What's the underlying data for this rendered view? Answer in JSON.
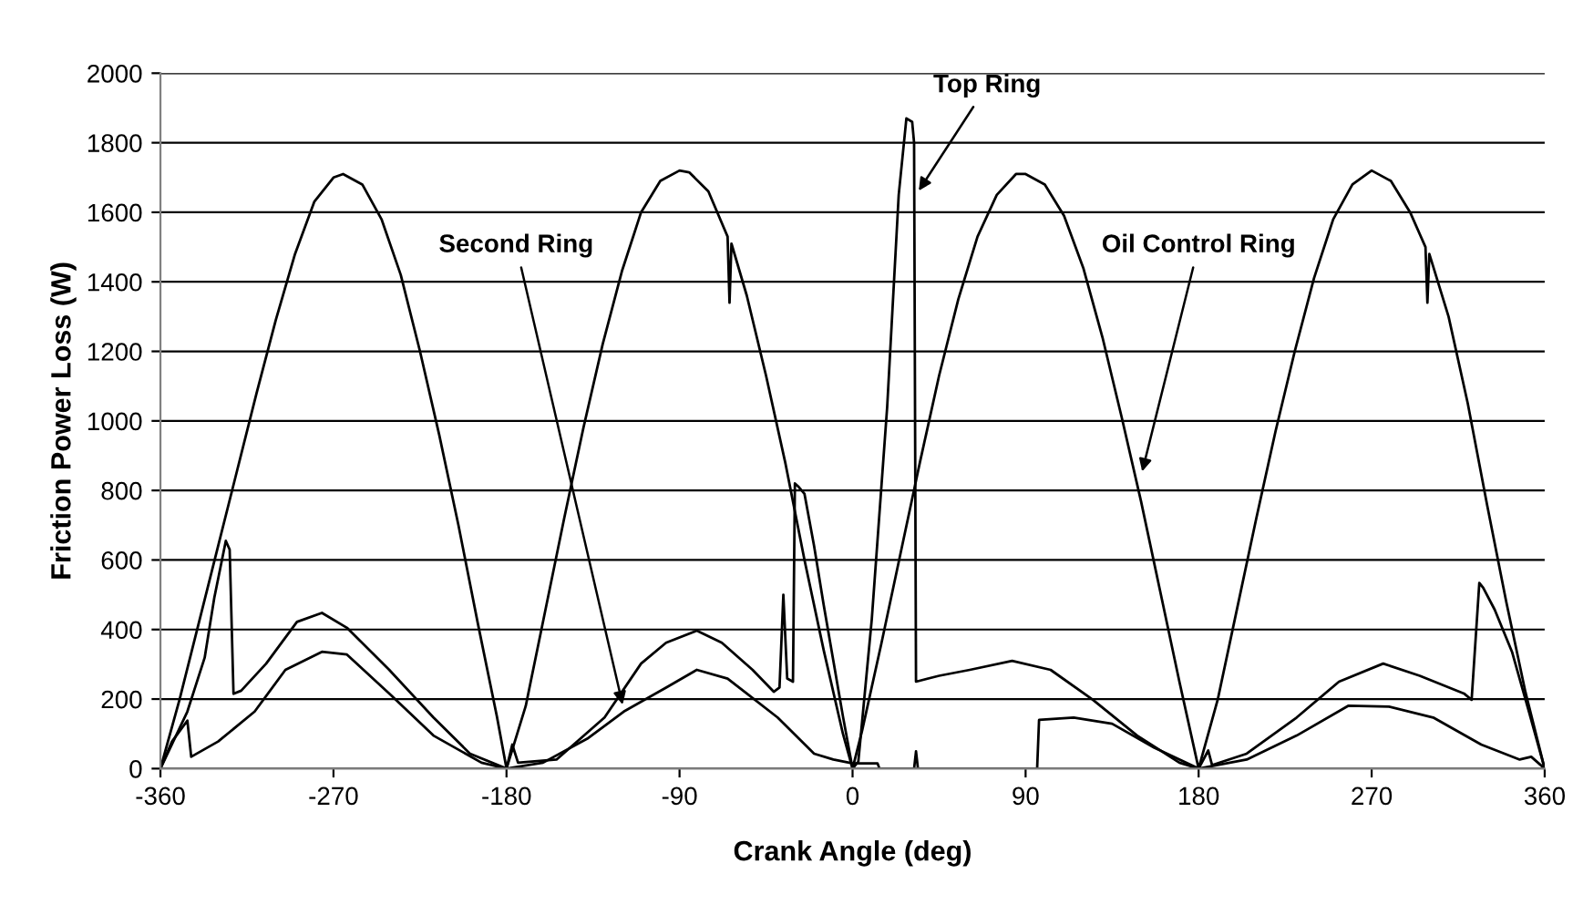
{
  "chart_data": {
    "type": "line",
    "xlabel": "Crank Angle (deg)",
    "ylabel": "Friction Power Loss (W)",
    "xlim": [
      -360,
      360
    ],
    "xticks": [
      -360,
      -270,
      -180,
      -90,
      0,
      90,
      180,
      270,
      360
    ],
    "ylim": [
      0,
      2000
    ],
    "yticks": [
      0,
      200,
      400,
      600,
      800,
      1000,
      1200,
      1400,
      1600,
      1800,
      2000
    ],
    "grid": "y",
    "marker": "none",
    "line_style": "solid",
    "series": [
      {
        "color": "#000000",
        "x": [
          -360,
          -350,
          -340,
          -330,
          -320,
          -310,
          -300,
          -290,
          -280,
          -270,
          -265,
          -255,
          -245,
          -235,
          -225,
          -215,
          -205,
          -195,
          -185,
          -180,
          -170,
          -160,
          -150,
          -140,
          -130,
          -120,
          -110,
          -100,
          -90,
          -85,
          -75,
          -65,
          -64,
          -63,
          -55,
          -45,
          -35,
          -25,
          -15,
          -5,
          0,
          5,
          15,
          25,
          35,
          45,
          55,
          65,
          75,
          85,
          90,
          100,
          110,
          120,
          130,
          140,
          150,
          160,
          170,
          180,
          190,
          200,
          210,
          220,
          230,
          240,
          250,
          260,
          270,
          280,
          290,
          298,
          299,
          300,
          310,
          320,
          330,
          340,
          350,
          360
        ],
        "values": [
          0,
          200,
          420,
          640,
          860,
          1080,
          1290,
          1480,
          1630,
          1700,
          1710,
          1680,
          1580,
          1420,
          1200,
          960,
          700,
          420,
          150,
          0,
          180,
          450,
          720,
          980,
          1220,
          1430,
          1600,
          1690,
          1720,
          1715,
          1660,
          1530,
          1340,
          1510,
          1360,
          1130,
          880,
          600,
          340,
          100,
          0,
          110,
          360,
          620,
          880,
          1130,
          1350,
          1530,
          1650,
          1710,
          1710,
          1680,
          1590,
          1440,
          1240,
          1010,
          770,
          510,
          250,
          0,
          200,
          460,
          720,
          970,
          1200,
          1410,
          1580,
          1680,
          1720,
          1690,
          1600,
          1500,
          1340,
          1480,
          1300,
          1050,
          760,
          480,
          220,
          0
        ]
      },
      {
        "color": "#000000",
        "x": [
          -360,
          -346,
          -337,
          -332,
          -326,
          -324,
          -322,
          -318,
          -305,
          -289,
          -276,
          -263,
          -241,
          -218,
          -199,
          -180,
          -177,
          -174,
          -154,
          -129,
          -110,
          -97,
          -81,
          -68,
          -52,
          -41,
          -38,
          -36,
          -34,
          -31,
          -30,
          -28,
          -25,
          -20,
          -15,
          -10,
          -5,
          0,
          3,
          10,
          18,
          24,
          28,
          31,
          32,
          33,
          45,
          61,
          83,
          103,
          125,
          148,
          170,
          180,
          185,
          187,
          205,
          231,
          253,
          276,
          295,
          318,
          322,
          326,
          328,
          334,
          343,
          352,
          360
        ],
        "values": [
          0,
          164,
          319,
          491,
          655,
          630,
          215,
          224,
          302,
          422,
          448,
          405,
          284,
          147,
          43,
          0,
          69,
          17,
          26,
          147,
          302,
          362,
          397,
          362,
          284,
          221,
          233,
          500,
          259,
          250,
          820,
          810,
          790,
          640,
          470,
          310,
          150,
          0,
          20,
          430,
          1040,
          1650,
          1870,
          1860,
          1800,
          250,
          267,
          284,
          310,
          284,
          198,
          95,
          17,
          0,
          52,
          10,
          43,
          147,
          250,
          302,
          267,
          216,
          198,
          534,
          520,
          457,
          336,
          160,
          0
        ]
      },
      {
        "color": "#000000",
        "x": [
          -360,
          -354,
          -346,
          -344,
          -330,
          -311,
          -295,
          -276,
          -263,
          -241,
          -218,
          -193,
          -180,
          -161,
          -138,
          -119,
          -97,
          -81,
          -65,
          -39,
          -20,
          -10,
          0,
          13,
          14,
          32,
          33,
          34,
          96,
          97,
          115,
          135,
          157,
          180,
          205,
          231,
          258,
          279,
          302,
          327,
          347,
          353,
          360
        ],
        "values": [
          0,
          78,
          138,
          34,
          78,
          164,
          284,
          336,
          328,
          216,
          95,
          17,
          0,
          17,
          86,
          164,
          233,
          284,
          259,
          147,
          43,
          26,
          15,
          15,
          0,
          0,
          50,
          0,
          0,
          140,
          147,
          129,
          60,
          0,
          26,
          95,
          181,
          178,
          147,
          69,
          26,
          34,
          0
        ]
      }
    ],
    "annotations": [
      {
        "text": "Top Ring",
        "x": 33,
        "y": 1650
      },
      {
        "text": "Second Ring",
        "x": -119,
        "y": 170
      },
      {
        "text": "Oil Control Ring",
        "x": 150,
        "y": 840
      }
    ]
  }
}
